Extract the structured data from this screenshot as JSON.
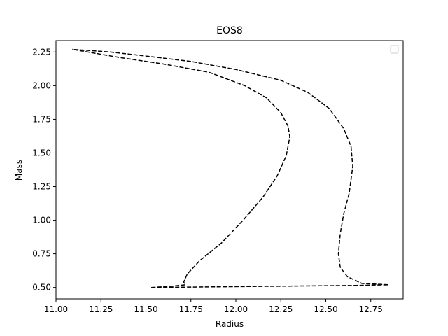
{
  "chart_data": {
    "type": "line",
    "title": "EOS8",
    "xlabel": "Radius",
    "ylabel": "Mass",
    "xlim": [
      11.0,
      12.93
    ],
    "ylim": [
      0.415,
      2.335
    ],
    "xticks": [
      "11.00",
      "11.25",
      "11.50",
      "11.75",
      "12.00",
      "12.25",
      "12.50",
      "12.75"
    ],
    "yticks": [
      "0.50",
      "0.75",
      "1.00",
      "1.25",
      "1.50",
      "1.75",
      "2.00",
      "2.25"
    ],
    "grid": false,
    "legend": "top-right",
    "line_color": "#000000",
    "line_style": "dashed",
    "series": [
      {
        "x": [
          11.53,
          11.65,
          11.72,
          11.71,
          11.73,
          11.8,
          11.92,
          12.04,
          12.15,
          12.23,
          12.28,
          12.3,
          12.29,
          12.25,
          12.17,
          12.05,
          11.85,
          11.6,
          11.35,
          11.09
        ],
        "y": [
          0.5,
          0.51,
          0.52,
          0.54,
          0.6,
          0.7,
          0.83,
          1.0,
          1.17,
          1.33,
          1.48,
          1.62,
          1.7,
          1.8,
          1.91,
          2.0,
          2.1,
          2.16,
          2.21,
          2.27
        ]
      },
      {
        "x": [
          11.53,
          11.9,
          12.3,
          12.65,
          12.85,
          12.7,
          12.62,
          12.58,
          12.57,
          12.58,
          12.6,
          12.63,
          12.65,
          12.64,
          12.6,
          12.52,
          12.4,
          12.25,
          12.0,
          11.75,
          11.5,
          11.3,
          11.09
        ],
        "y": [
          0.5,
          0.505,
          0.51,
          0.515,
          0.52,
          0.53,
          0.58,
          0.65,
          0.75,
          0.9,
          1.05,
          1.2,
          1.4,
          1.55,
          1.68,
          1.83,
          1.95,
          2.04,
          2.12,
          2.18,
          2.22,
          2.25,
          2.27
        ]
      }
    ]
  }
}
